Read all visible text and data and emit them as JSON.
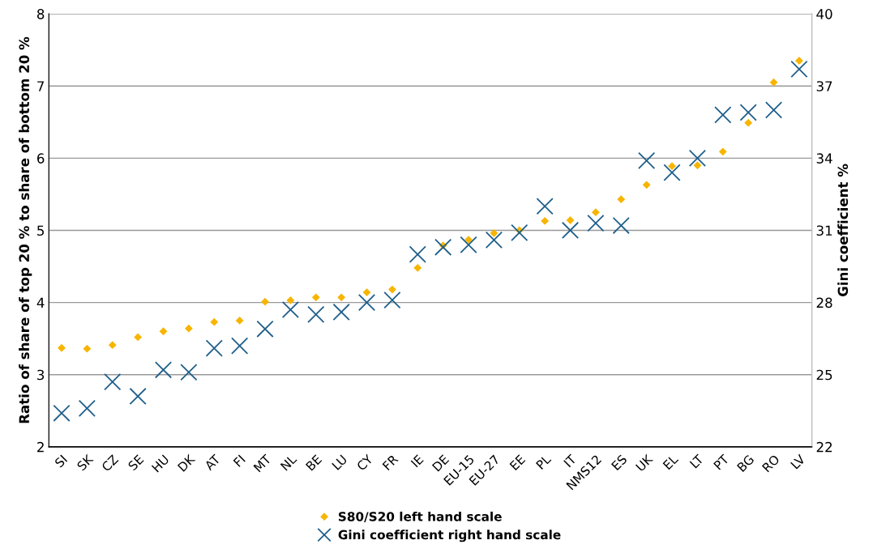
{
  "chart_data": {
    "type": "scatter",
    "ylabel": "Ratio of share of top 20 % to share of bottom 20 %",
    "y2label": "Gini coefficient %",
    "categories": [
      "SI",
      "SK",
      "CZ",
      "SE",
      "HU",
      "DK",
      "AT",
      "FI",
      "MT",
      "NL",
      "BE",
      "LU",
      "CY",
      "FR",
      "IE",
      "DE",
      "EU-15",
      "EU-27",
      "EE",
      "PL",
      "IT",
      "NMS12",
      "ES",
      "UK",
      "EL",
      "LT",
      "PT",
      "BG",
      "RO",
      "LV"
    ],
    "series": [
      {
        "name": "S80/S20 left hand scale",
        "color": "#f7b500",
        "marker": "diamond",
        "values": [
          3.37,
          3.36,
          3.41,
          3.52,
          3.6,
          3.64,
          3.73,
          3.75,
          4.01,
          4.03,
          4.07,
          4.07,
          4.14,
          4.18,
          4.48,
          4.79,
          4.87,
          4.96,
          5.0,
          5.13,
          5.14,
          5.25,
          5.43,
          5.63,
          5.89,
          5.9,
          6.09,
          6.49,
          7.05,
          7.35
        ]
      },
      {
        "name": "Gini coefficient right hand scale",
        "color": "#1f5f8b",
        "marker": "cross",
        "axis": "y2",
        "values": [
          23.4,
          23.6,
          24.7,
          24.1,
          25.2,
          25.1,
          26.1,
          26.2,
          26.9,
          27.7,
          27.5,
          27.6,
          28.0,
          28.1,
          30.0,
          30.3,
          30.4,
          30.6,
          30.9,
          32.0,
          31.0,
          31.3,
          31.2,
          33.9,
          33.4,
          34.0,
          35.8,
          35.9,
          36.0,
          37.7
        ]
      }
    ],
    "ylim": [
      2,
      8
    ],
    "yticks": [
      2,
      3,
      4,
      5,
      6,
      7,
      8
    ],
    "y2lim": [
      22,
      40
    ],
    "y2ticks": [
      22,
      25,
      28,
      31,
      34,
      37,
      40
    ],
    "grid": "y",
    "legend": "bottom"
  }
}
